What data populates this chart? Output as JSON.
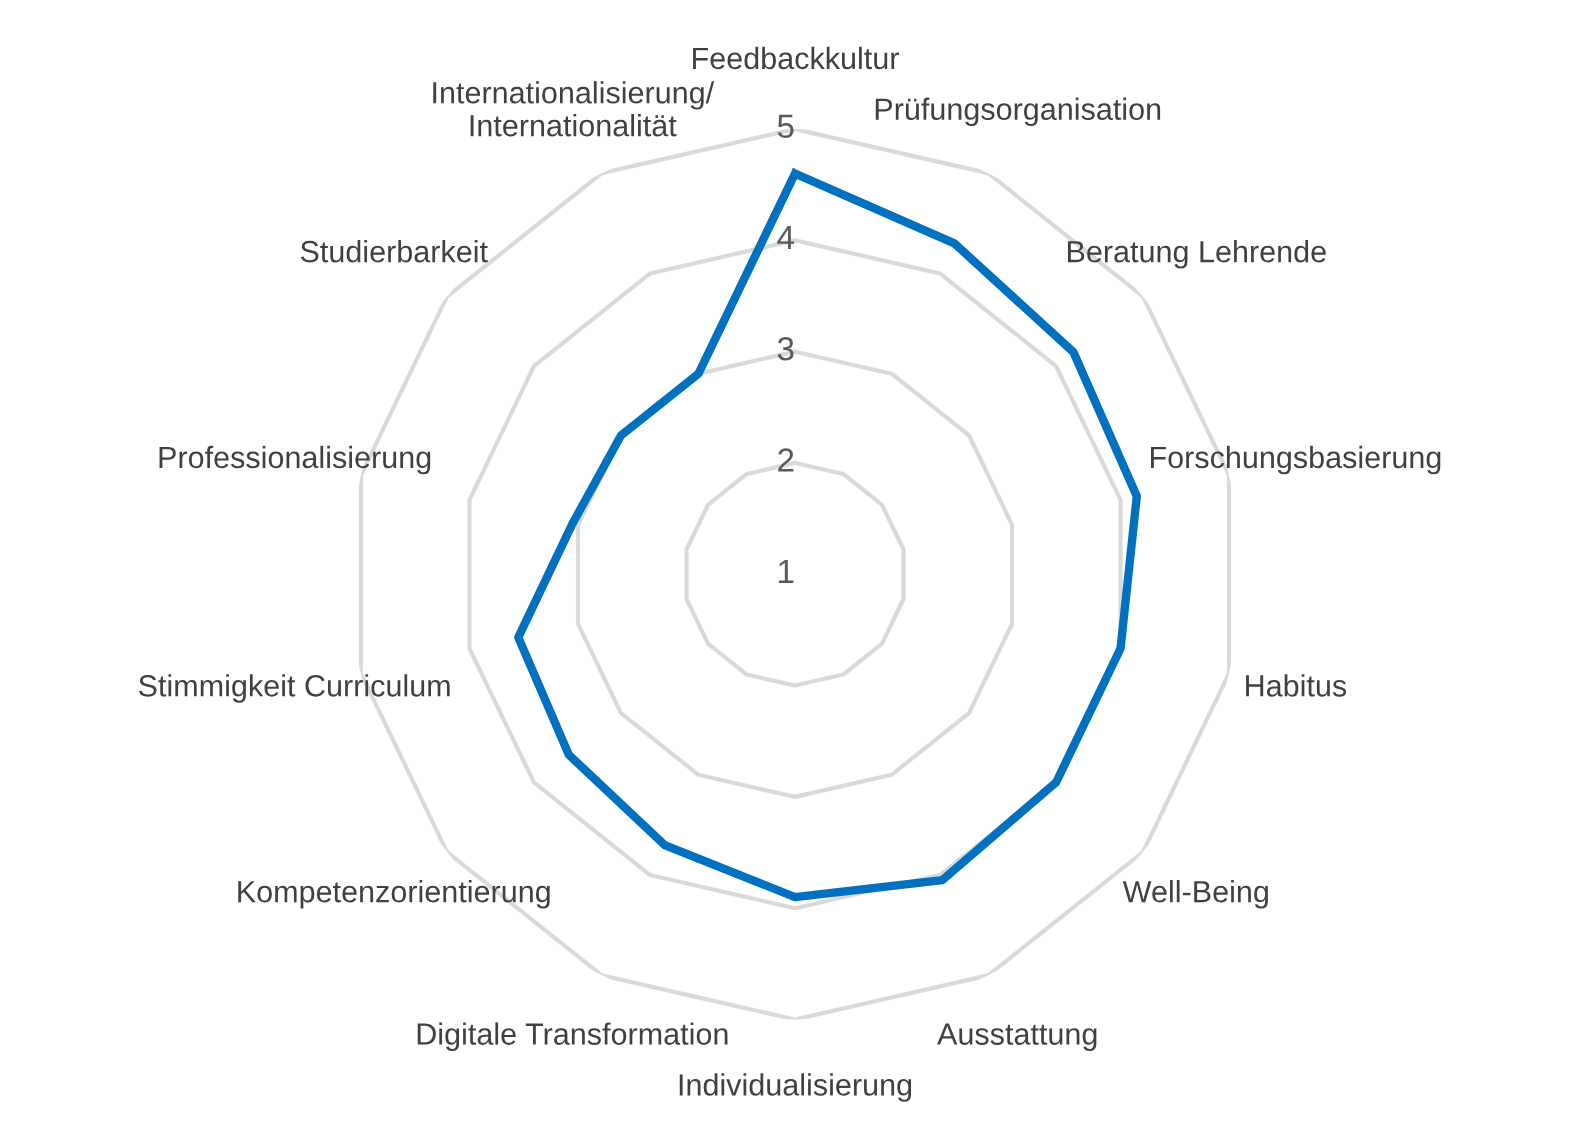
{
  "chart_data": {
    "type": "radar",
    "categories": [
      "Feedbackkultur",
      "Prüfungsorganisation",
      "Beratung Lehrende",
      "Forschungsbasierung",
      "Habitus",
      "Well-Being",
      "Ausstattung",
      "Individualisierung",
      "Digitale Transformation",
      "Kompetenzorientierung",
      "Stimmigkeit Curriculum",
      "Professionalisierung",
      "Studierbarkeit",
      "Internationalisierung/\nInternationalität"
    ],
    "series": [
      {
        "color": "#0070c0",
        "values": [
          4.6,
          4.3,
          4.2,
          4.15,
          4.0,
          4.0,
          4.05,
          3.9,
          3.7,
          3.6,
          3.55,
          3.05,
          3.0,
          3.0
        ]
      }
    ],
    "ylim": [
      1,
      5
    ],
    "yticks": [
      1,
      2,
      3,
      4,
      5
    ],
    "grid": true,
    "legend": false
  }
}
